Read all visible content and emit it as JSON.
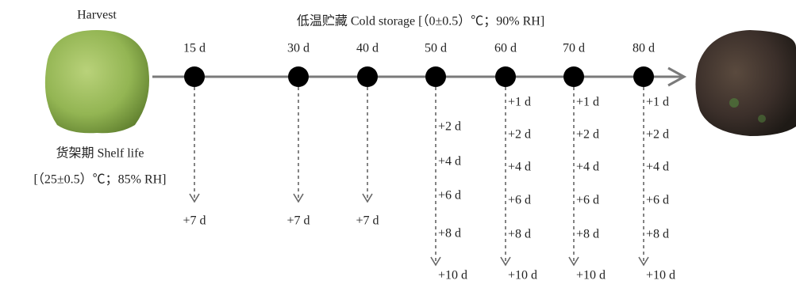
{
  "harvest": {
    "label": "Harvest"
  },
  "storage": {
    "title": "低温贮藏 Cold storage [（0±0.5）℃；90% RH]"
  },
  "shelf_life": {
    "title": "货架期 Shelf life",
    "conditions": "[（25±0.5）℃；85% RH]"
  },
  "timepoints": [
    {
      "label": "15 d",
      "shelf_days": [
        "+7 d"
      ]
    },
    {
      "label": "30 d",
      "shelf_days": [
        "+7 d"
      ]
    },
    {
      "label": "40 d",
      "shelf_days": [
        "+7 d"
      ]
    },
    {
      "label": "50 d",
      "shelf_days": [
        "+2 d",
        "+4 d",
        "+6 d",
        "+8 d",
        "+10 d"
      ]
    },
    {
      "label": "60 d",
      "shelf_days": [
        "+1 d",
        "+2 d",
        "+4 d",
        "+6 d",
        "+8 d",
        "+10 d"
      ]
    },
    {
      "label": "70 d",
      "shelf_days": [
        "+1 d",
        "+2 d",
        "+4 d",
        "+6 d",
        "+8 d",
        "+10 d"
      ]
    },
    {
      "label": "80 d",
      "shelf_days": [
        "+1 d",
        "+2 d",
        "+4 d",
        "+6 d",
        "+8 d",
        "+10 d"
      ]
    }
  ]
}
